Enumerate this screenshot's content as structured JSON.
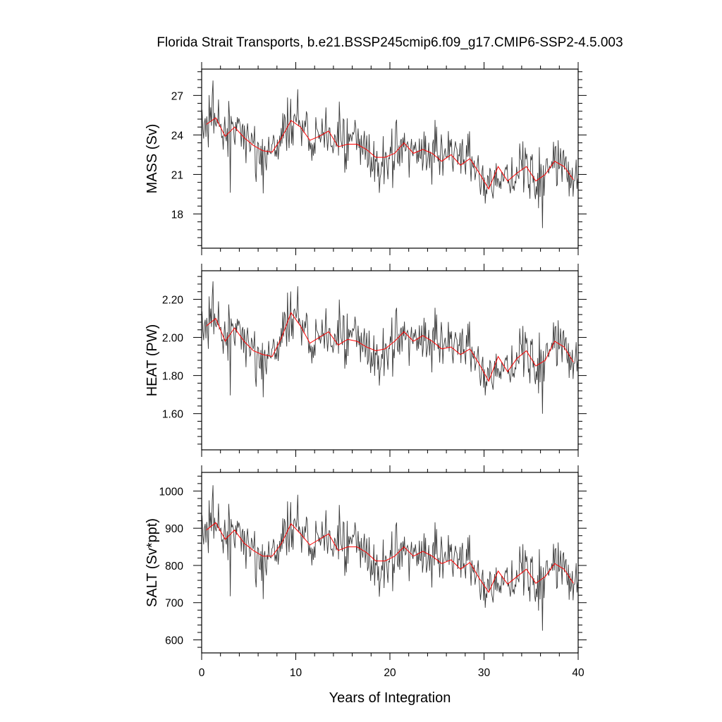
{
  "chart_data": {
    "type": "line",
    "title": "Florida Strait Transports, b.e21.BSSP245cmip6.f09_g17.CMIP6-SSP2-4.5.003",
    "xlabel": "Years of Integration",
    "xlim": [
      0,
      40
    ],
    "xticks": [
      "0",
      "10",
      "20",
      "30",
      "40"
    ],
    "colors": {
      "monthly": "#3a3a3a",
      "annual": "#ff0000"
    },
    "panels": [
      {
        "ylabel": "MASS (Sv)",
        "ylim": [
          15.4,
          29.0
        ],
        "yticks": [
          {
            "value": 18,
            "label": "18"
          },
          {
            "value": 21,
            "label": "21"
          },
          {
            "value": 24,
            "label": "24"
          },
          {
            "value": 27,
            "label": "27"
          }
        ],
        "annual_x": [
          0.5,
          1.5,
          2.5,
          3.5,
          4.5,
          5.5,
          6.5,
          7.5,
          8.5,
          9.5,
          10.5,
          11.5,
          12.5,
          13.5,
          14.5,
          15.5,
          16.5,
          17.5,
          18.5,
          19.5,
          20.5,
          21.5,
          22.5,
          23.5,
          24.5,
          25.5,
          26.5,
          27.5,
          28.5,
          29.5,
          30.5,
          31.5,
          32.5,
          33.5,
          34.5,
          35.5,
          36.5,
          37.5,
          38.5,
          39.5
        ],
        "annual_y": [
          24.8,
          25.3,
          23.9,
          24.6,
          23.8,
          23.2,
          22.8,
          22.7,
          23.8,
          25.1,
          24.6,
          23.6,
          23.9,
          24.3,
          23.1,
          23.3,
          23.3,
          22.9,
          22.3,
          22.3,
          22.6,
          23.4,
          22.6,
          22.9,
          22.6,
          22.0,
          22.5,
          21.7,
          22.2,
          21.1,
          19.9,
          21.6,
          20.5,
          21.1,
          21.6,
          20.5,
          21.0,
          22.0,
          21.6,
          20.6
        ]
      },
      {
        "ylabel": "HEAT (PW)",
        "ylim": [
          1.41,
          2.35
        ],
        "yticks": [
          {
            "value": 1.6,
            "label": "1.60"
          },
          {
            "value": 1.8,
            "label": "1.80"
          },
          {
            "value": 2.0,
            "label": "2.00"
          },
          {
            "value": 2.2,
            "label": "2.20"
          }
        ],
        "annual_x": [
          0.5,
          1.5,
          2.5,
          3.5,
          4.5,
          5.5,
          6.5,
          7.5,
          8.5,
          9.5,
          10.5,
          11.5,
          12.5,
          13.5,
          14.5,
          15.5,
          16.5,
          17.5,
          18.5,
          19.5,
          20.5,
          21.5,
          22.5,
          23.5,
          24.5,
          25.5,
          26.5,
          27.5,
          28.5,
          29.5,
          30.5,
          31.5,
          32.5,
          33.5,
          34.5,
          35.5,
          36.5,
          37.5,
          38.5,
          39.5
        ],
        "annual_y": [
          2.06,
          2.1,
          1.98,
          2.05,
          1.98,
          1.93,
          1.91,
          1.9,
          2.0,
          2.13,
          2.06,
          1.97,
          2.0,
          2.03,
          1.96,
          1.99,
          1.98,
          1.95,
          1.93,
          1.94,
          1.98,
          2.03,
          1.98,
          2.01,
          1.98,
          1.94,
          1.95,
          1.91,
          1.94,
          1.86,
          1.77,
          1.9,
          1.82,
          1.89,
          1.93,
          1.85,
          1.88,
          1.98,
          1.95,
          1.87
        ]
      },
      {
        "ylabel": "SALT (Sv*ppt)",
        "ylim": [
          565,
          1050
        ],
        "yticks": [
          {
            "value": 600,
            "label": "600"
          },
          {
            "value": 700,
            "label": "700"
          },
          {
            "value": 800,
            "label": "800"
          },
          {
            "value": 900,
            "label": "900"
          },
          {
            "value": 1000,
            "label": "1000"
          }
        ],
        "annual_x": [
          0.5,
          1.5,
          2.5,
          3.5,
          4.5,
          5.5,
          6.5,
          7.5,
          8.5,
          9.5,
          10.5,
          11.5,
          12.5,
          13.5,
          14.5,
          15.5,
          16.5,
          17.5,
          18.5,
          19.5,
          20.5,
          21.5,
          22.5,
          23.5,
          24.5,
          25.5,
          26.5,
          27.5,
          28.5,
          29.5,
          30.5,
          31.5,
          32.5,
          33.5,
          34.5,
          35.5,
          36.5,
          37.5,
          38.5,
          39.5
        ],
        "annual_y": [
          895,
          915,
          870,
          895,
          860,
          840,
          825,
          825,
          860,
          912,
          885,
          855,
          870,
          885,
          840,
          850,
          850,
          835,
          812,
          812,
          825,
          850,
          825,
          838,
          825,
          805,
          815,
          790,
          808,
          765,
          728,
          785,
          750,
          770,
          790,
          752,
          770,
          805,
          790,
          752
        ]
      }
    ]
  }
}
